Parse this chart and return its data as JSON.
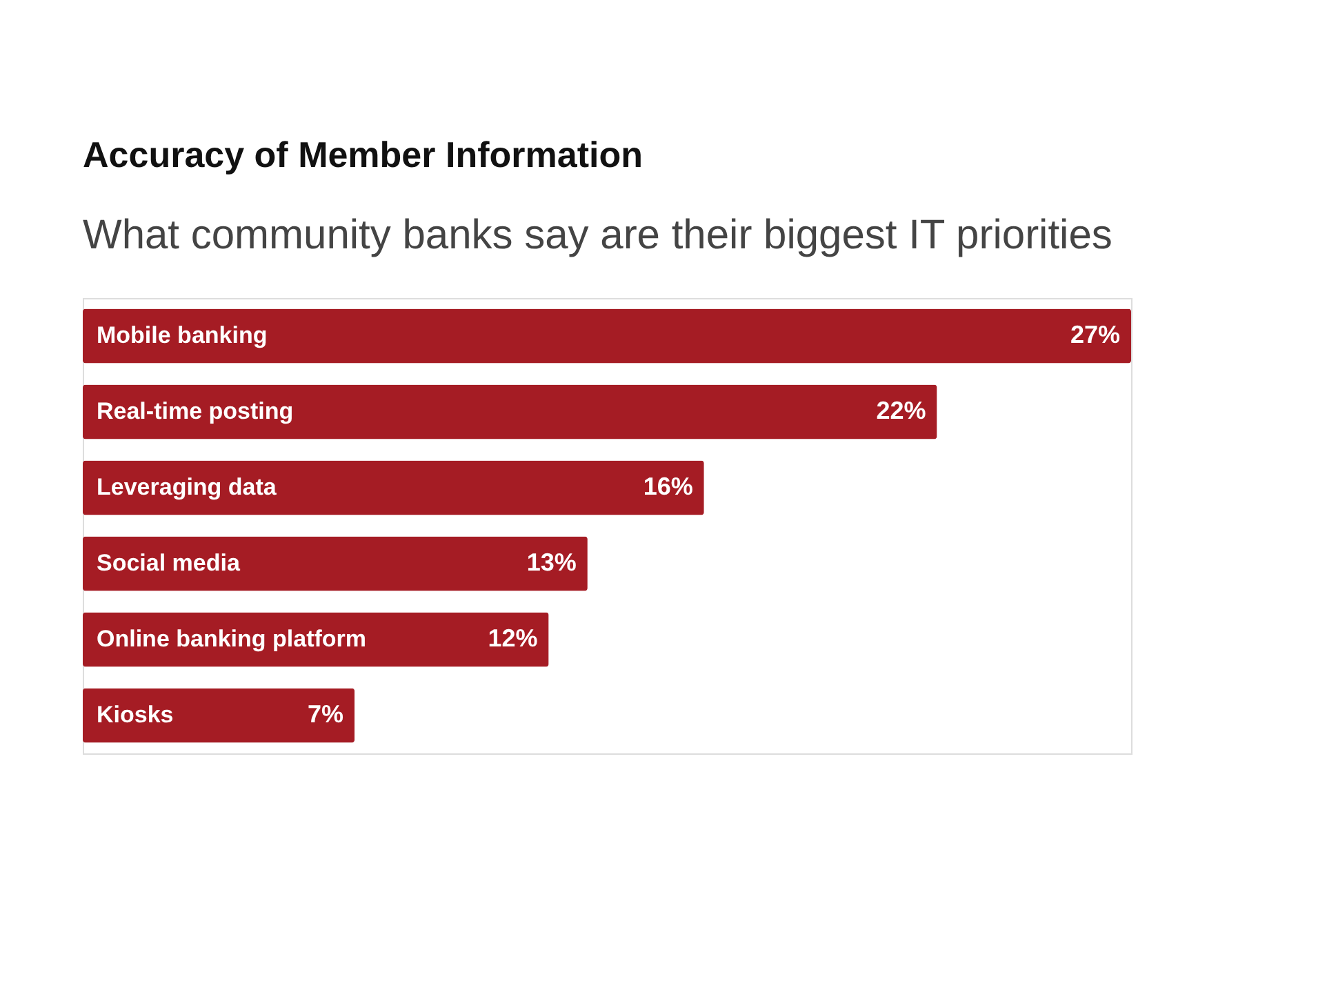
{
  "chart_data": {
    "type": "bar",
    "orientation": "horizontal",
    "title": "Accuracy of Member Information",
    "subtitle": "What community banks say are their biggest IT priorities",
    "categories": [
      "Mobile banking",
      "Real-time posting",
      "Leveraging data",
      "Social media",
      "Online banking platform",
      "Kiosks"
    ],
    "values": [
      27,
      22,
      16,
      13,
      12,
      7
    ],
    "value_labels": [
      "27%",
      "22%",
      "16%",
      "13%",
      "12%",
      "7%"
    ],
    "color": "#a51c24",
    "tick_labels": false
  }
}
